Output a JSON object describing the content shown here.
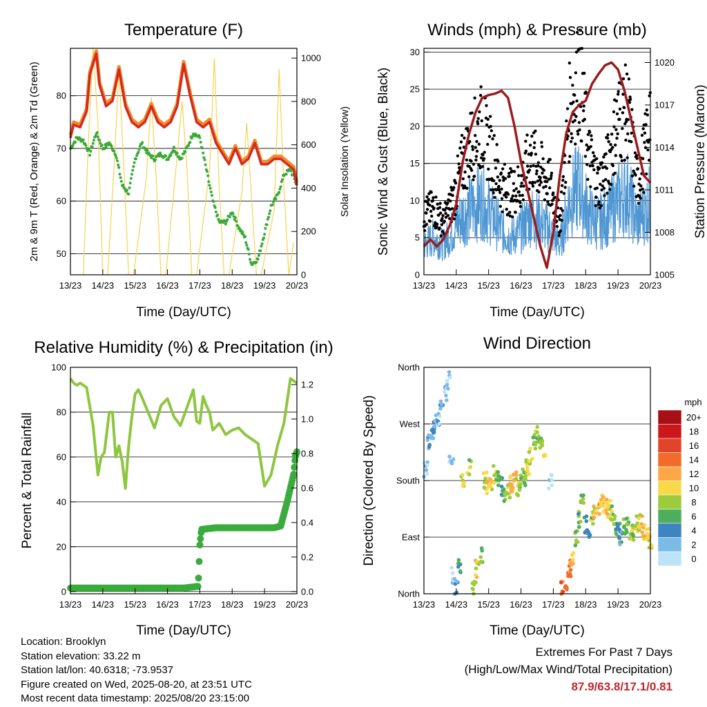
{
  "panels": {
    "temperature": {
      "title": "Temperature (F)",
      "xlabel": "Time (Day/UTC)",
      "ylabel_left": "2m & 9m T (Red, Orange) & 2m Td (Green)",
      "ylabel_right": "Solar Insolation (Yellow)"
    },
    "winds": {
      "title": "Winds (mph) & Pressure (mb)",
      "xlabel": "Time (Day/UTC)",
      "ylabel_left": "Sonic Wind & Gust (Blue, Black)",
      "ylabel_right": "Station Pressure (Maroon)"
    },
    "humidity": {
      "title": "Relative Humidity (%) & Precipitation (in)",
      "xlabel": "Time (Day/UTC)",
      "ylabel_left": "Percent & Total Rainfall"
    },
    "direction": {
      "title": "Wind Direction",
      "xlabel": "Time (Day/UTC)",
      "ylabel_left": "Direction (Colored By Speed)"
    }
  },
  "colorbar": {
    "unit": "mph",
    "labels": [
      "20+",
      "18",
      "16",
      "14",
      "12",
      "10",
      "8",
      "6",
      "4",
      "2",
      "0"
    ],
    "colors": [
      "#a50f15",
      "#cb181d",
      "#e0452c",
      "#f16c2a",
      "#fca848",
      "#fbd847",
      "#9ccb3c",
      "#4fae5c",
      "#3d84c0",
      "#7bbbe6",
      "#bde3f7"
    ]
  },
  "footer": {
    "location": "Location: Brooklyn",
    "elevation": "Station elevation: 33.22 m",
    "latlon": "Station lat/lon: 40.6318; -73.9537",
    "created": "Figure created on Wed, 2025-08-20, at 23:51 UTC",
    "recent": "Most recent data timestamp: 2025/08/20 23:15:00"
  },
  "extremes": {
    "line1": "Extremes For Past 7 Days",
    "line2": "(High/Low/Max Wind/Total Precipitation)",
    "values": "87.9/63.8/17.1/0.81"
  },
  "chart_data": [
    {
      "type": "line",
      "title": "Temperature (F)",
      "xlabel": "Time (Day/UTC)",
      "ylabel": "2m & 9m T (Red, Orange) & 2m Td (Green)",
      "y2label": "Solar Insolation (Yellow)",
      "x_ticks": [
        "13/23",
        "14/23",
        "15/23",
        "16/23",
        "17/23",
        "18/23",
        "19/23",
        "20/23"
      ],
      "xlim": [
        0,
        7
      ],
      "ylim": [
        46,
        89
      ],
      "y_ticks": [
        50,
        60,
        70,
        80
      ],
      "y2lim": [
        0,
        1045
      ],
      "y2_ticks": [
        0,
        200,
        400,
        600,
        800,
        1000
      ],
      "grid_y": true,
      "series": [
        {
          "name": "2m T",
          "color": "#d42a1f",
          "x": [
            0,
            0.1,
            0.3,
            0.5,
            0.6,
            0.8,
            0.9,
            1.1,
            1.3,
            1.5,
            1.7,
            1.9,
            2.1,
            2.3,
            2.5,
            2.7,
            2.9,
            3.1,
            3.3,
            3.5,
            3.7,
            3.9,
            4.1,
            4.3,
            4.5,
            4.7,
            4.9,
            5.1,
            5.3,
            5.5,
            5.7,
            5.9,
            6.1,
            6.3,
            6.5,
            6.7,
            6.9,
            7.0
          ],
          "y": [
            72,
            74.5,
            74,
            77,
            84,
            88,
            82,
            78,
            79,
            85,
            78,
            75,
            74,
            75,
            78,
            75,
            74,
            75,
            78,
            86,
            80,
            75,
            74,
            75,
            71,
            69,
            67,
            70,
            67,
            68,
            71,
            67,
            67,
            68,
            68,
            67,
            66,
            63
          ]
        },
        {
          "name": "9m T",
          "color": "#f28a2a",
          "x": [
            0,
            0.1,
            0.3,
            0.5,
            0.6,
            0.8,
            0.9,
            1.1,
            1.3,
            1.5,
            1.7,
            1.9,
            2.1,
            2.3,
            2.5,
            2.7,
            2.9,
            3.1,
            3.3,
            3.5,
            3.7,
            3.9,
            4.1,
            4.3,
            4.5,
            4.7,
            4.9,
            5.1,
            5.3,
            5.5,
            5.7,
            5.9,
            6.1,
            6.3,
            6.5,
            6.7,
            6.9,
            7.0
          ],
          "y": [
            72.5,
            75,
            74.5,
            77.5,
            84.5,
            88.5,
            82.5,
            78.5,
            79.5,
            85.5,
            78.5,
            75.5,
            74.5,
            75.5,
            78.5,
            75.5,
            74.5,
            75.5,
            78.5,
            86.5,
            80.5,
            75.5,
            74.5,
            75.5,
            71.5,
            69.5,
            67.5,
            70.5,
            67.5,
            68.5,
            71.5,
            67.5,
            67.5,
            68.5,
            68.5,
            67.5,
            66.5,
            63.5
          ]
        },
        {
          "name": "2m Td",
          "color": "#3aa935",
          "x": [
            0,
            0.2,
            0.4,
            0.6,
            0.8,
            1.0,
            1.2,
            1.4,
            1.6,
            1.8,
            2.0,
            2.2,
            2.4,
            2.6,
            2.8,
            3.0,
            3.2,
            3.4,
            3.6,
            3.8,
            4.0,
            4.2,
            4.4,
            4.6,
            4.8,
            5.0,
            5.2,
            5.4,
            5.6,
            5.8,
            6.0,
            6.2,
            6.4,
            6.6,
            6.8,
            7.0
          ],
          "y": [
            70,
            72,
            71.5,
            69,
            73,
            70,
            71,
            69,
            63,
            61.5,
            68,
            71,
            69,
            68,
            69,
            68,
            70,
            68,
            70,
            73,
            72,
            66,
            60,
            56,
            56,
            58,
            55,
            53,
            48,
            49,
            54,
            59,
            61,
            65,
            66,
            63
          ]
        },
        {
          "name": "Solar Insolation",
          "color": "#f5d34b",
          "axis": "right",
          "x": [
            0.4,
            0.55,
            0.7,
            0.85,
            1.0,
            1.15,
            1.35,
            1.5,
            1.65,
            1.8,
            1.95,
            2.35,
            2.5,
            2.65,
            2.8,
            2.95,
            3.3,
            3.45,
            3.6,
            3.75,
            3.9,
            4.3,
            4.45,
            4.6,
            4.75,
            4.9,
            5.3,
            5.45,
            5.6,
            5.75,
            5.9,
            6.3,
            6.45,
            6.6,
            6.75,
            6.9
          ],
          "y": [
            0,
            600,
            1050,
            700,
            0,
            0,
            500,
            950,
            500,
            0,
            0,
            450,
            820,
            450,
            0,
            0,
            550,
            800,
            500,
            0,
            0,
            480,
            1000,
            400,
            0,
            0,
            380,
            700,
            350,
            0,
            0,
            300,
            950,
            400,
            0,
            150
          ]
        }
      ]
    },
    {
      "type": "line",
      "title": "Winds (mph) & Pressure (mb)",
      "xlabel": "Time (Day/UTC)",
      "ylabel": "Sonic Wind & Gust (Blue, Black)",
      "y2label": "Station Pressure (Maroon)",
      "x_ticks": [
        "13/23",
        "14/23",
        "15/23",
        "16/23",
        "17/23",
        "18/23",
        "19/23",
        "20/23"
      ],
      "xlim": [
        0,
        7
      ],
      "ylim": [
        0,
        30.5
      ],
      "y_ticks": [
        0,
        5,
        10,
        15,
        20,
        25,
        30
      ],
      "y2lim": [
        1005,
        1021
      ],
      "y2_ticks": [
        1005,
        1008,
        1011,
        1014,
        1017,
        1020
      ],
      "grid_y": true,
      "series": [
        {
          "name": "Sonic Wind",
          "color": "#4f97d2",
          "x": [
            0,
            0.3,
            0.6,
            0.9,
            1.2,
            1.5,
            1.8,
            2.1,
            2.4,
            2.7,
            3.0,
            3.3,
            3.6,
            3.9,
            4.2,
            4.5,
            4.8,
            5.1,
            5.4,
            5.7,
            6.0,
            6.3,
            6.6,
            6.9,
            7.0
          ],
          "y": [
            4,
            5,
            4,
            6,
            8,
            9,
            10,
            8,
            6,
            5,
            6,
            8,
            7,
            6,
            4,
            10,
            12,
            8,
            7,
            8,
            10,
            11,
            7,
            9,
            10
          ]
        },
        {
          "name": "Gust",
          "color": "#000000",
          "x": [
            0,
            0.3,
            0.6,
            0.9,
            1.2,
            1.5,
            1.8,
            2.1,
            2.4,
            2.7,
            3.0,
            3.3,
            3.6,
            3.9,
            4.2,
            4.5,
            4.8,
            5.1,
            5.4,
            5.7,
            6.0,
            6.3,
            6.6,
            6.9,
            7.0
          ],
          "y": [
            8,
            9,
            7,
            10,
            15,
            18,
            20,
            16,
            12,
            11,
            12,
            16,
            14,
            12,
            7,
            22,
            27,
            16,
            12,
            15,
            21,
            22,
            12,
            18,
            23
          ]
        },
        {
          "name": "Station Pressure",
          "color": "#9b1b1e",
          "axis": "right",
          "x": [
            0,
            0.2,
            0.4,
            0.6,
            0.8,
            1.0,
            1.2,
            1.4,
            1.6,
            1.8,
            2.0,
            2.2,
            2.4,
            2.6,
            2.8,
            3.0,
            3.2,
            3.4,
            3.6,
            3.8,
            4.0,
            4.2,
            4.4,
            4.6,
            4.8,
            5.0,
            5.2,
            5.4,
            5.6,
            5.8,
            6.0,
            6.2,
            6.4,
            6.6,
            6.8,
            7.0
          ],
          "y": [
            1007,
            1007.5,
            1007,
            1007.5,
            1008.5,
            1010,
            1013,
            1015,
            1016.5,
            1017.5,
            1017.7,
            1017.8,
            1018,
            1017.5,
            1015.5,
            1013,
            1011,
            1009,
            1007,
            1005.5,
            1008,
            1012,
            1015,
            1016.5,
            1017,
            1017.3,
            1018.5,
            1019.2,
            1019.8,
            1020,
            1019.5,
            1018,
            1016,
            1014,
            1012,
            1011.5
          ]
        }
      ]
    },
    {
      "type": "line",
      "title": "Relative Humidity (%) & Precipitation (in)",
      "xlabel": "Time (Day/UTC)",
      "ylabel": "Percent & Total Rainfall",
      "x_ticks": [
        "13/23",
        "14/23",
        "15/23",
        "16/23",
        "17/23",
        "18/23",
        "19/23",
        "20/23"
      ],
      "xlim": [
        0,
        7
      ],
      "ylim": [
        -1,
        100
      ],
      "y_ticks": [
        0,
        20,
        40,
        60,
        80,
        100
      ],
      "y2lim": [
        -0.013,
        1.3
      ],
      "y2_ticks": [
        0.0,
        0.2,
        0.4,
        0.6,
        0.8,
        1.0,
        1.2
      ],
      "grid_y": true,
      "series": [
        {
          "name": "Relative Humidity",
          "color": "#8dc63f",
          "x": [
            0,
            0.1,
            0.2,
            0.3,
            0.5,
            0.7,
            0.85,
            0.95,
            1.05,
            1.2,
            1.3,
            1.4,
            1.5,
            1.6,
            1.7,
            1.8,
            1.9,
            2.0,
            2.1,
            2.2,
            2.4,
            2.6,
            2.8,
            3.0,
            3.2,
            3.4,
            3.6,
            3.8,
            3.9,
            4.0,
            4.1,
            4.2,
            4.3,
            4.4,
            4.6,
            4.8,
            5.0,
            5.2,
            5.4,
            5.6,
            5.8,
            6.0,
            6.2,
            6.4,
            6.6,
            6.8,
            7.0
          ],
          "y": [
            95,
            93,
            92,
            93,
            91,
            74,
            52,
            60,
            62,
            80,
            80,
            60,
            65,
            58,
            46,
            65,
            78,
            88,
            90,
            87,
            80,
            73,
            83,
            86,
            78,
            74,
            82,
            90,
            76,
            75,
            87,
            83,
            80,
            72,
            75,
            70,
            72,
            73,
            70,
            68,
            66,
            47,
            52,
            65,
            75,
            95,
            93
          ]
        },
        {
          "name": "Total Precipitation",
          "color": "#3aab3c",
          "axis": "right",
          "x": [
            0,
            0.5,
            1,
            1.5,
            2,
            2.5,
            3,
            3.5,
            3.95,
            4.0,
            4.05,
            4.5,
            5.0,
            5.5,
            6.0,
            6.3,
            6.5,
            6.6,
            6.7,
            6.8,
            6.9,
            6.95,
            7.0
          ],
          "y": [
            0.02,
            0.02,
            0.02,
            0.02,
            0.02,
            0.02,
            0.02,
            0.02,
            0.03,
            0.27,
            0.36,
            0.37,
            0.37,
            0.37,
            0.37,
            0.37,
            0.38,
            0.45,
            0.52,
            0.6,
            0.68,
            0.78,
            0.81
          ]
        }
      ]
    },
    {
      "type": "scatter",
      "title": "Wind Direction",
      "xlabel": "Time (Day/UTC)",
      "ylabel": "Direction (Colored By Speed)",
      "x_ticks": [
        "13/23",
        "14/23",
        "15/23",
        "16/23",
        "17/23",
        "18/23",
        "19/23",
        "20/23"
      ],
      "xlim": [
        0,
        7
      ],
      "ylim": [
        0,
        360
      ],
      "y_ticks": [
        "North",
        "East",
        "South",
        "West",
        "North"
      ],
      "grid_y": true,
      "color_scale": "mph, 0 to 20+",
      "series": [
        {
          "name": "Direction",
          "x": [
            0.05,
            0.15,
            0.25,
            0.35,
            0.45,
            0.55,
            0.65,
            0.75,
            0.85,
            0.9,
            1.0,
            1.1,
            1.2,
            1.4,
            1.55,
            1.65,
            1.75,
            1.9,
            2.0,
            2.1,
            2.2,
            2.3,
            2.4,
            2.5,
            2.6,
            2.7,
            2.8,
            2.9,
            3.0,
            3.1,
            3.2,
            3.3,
            3.4,
            3.5,
            3.6,
            3.7,
            3.9,
            4.3,
            4.4,
            4.5,
            4.6,
            4.7,
            4.8,
            4.9,
            5.0,
            5.1,
            5.2,
            5.3,
            5.4,
            5.5,
            5.6,
            5.7,
            5.8,
            5.9,
            6.0,
            6.1,
            6.2,
            6.3,
            6.4,
            6.5,
            6.6,
            6.7,
            6.8,
            6.9,
            7.0
          ],
          "y": [
            200,
            240,
            260,
            270,
            280,
            300,
            320,
            340,
            220,
            30,
            10,
            40,
            180,
            200,
            10,
            40,
            60,
            180,
            170,
            175,
            190,
            185,
            170,
            160,
            165,
            175,
            180,
            170,
            175,
            185,
            200,
            220,
            240,
            255,
            240,
            230,
            180,
            10,
            20,
            40,
            60,
            90,
            120,
            150,
            110,
            100,
            120,
            130,
            140,
            150,
            140,
            135,
            130,
            110,
            100,
            90,
            105,
            110,
            100,
            95,
            110,
            115,
            100,
            90,
            85
          ],
          "speed": [
            3,
            4,
            4,
            4,
            3,
            4,
            3,
            3,
            2,
            2,
            5,
            6,
            10,
            9,
            9,
            11,
            8,
            10,
            12,
            11,
            9,
            8,
            6,
            8,
            10,
            12,
            13,
            10,
            8,
            8,
            9,
            10,
            8,
            9,
            8,
            10,
            2,
            15,
            16,
            14,
            12,
            8,
            7,
            8,
            7,
            6,
            9,
            11,
            13,
            12,
            11,
            10,
            9,
            8,
            6,
            5,
            7,
            9,
            10,
            8,
            9,
            11,
            12,
            10,
            11
          ]
        }
      ]
    }
  ]
}
